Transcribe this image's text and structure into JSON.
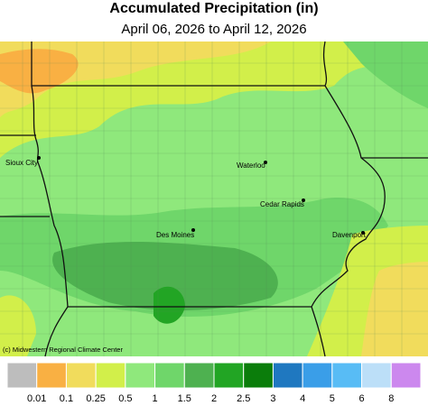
{
  "title": "Accumulated Precipitation (in)",
  "subtitle": "April 06, 2026 to April 12, 2026",
  "cities": [
    "Sioux City",
    "Waterloo",
    "Cedar Rapids",
    "Des Moines",
    "Davenport"
  ],
  "credit": "(c) Midwestern Regional Climate Center",
  "legend": {
    "labels": [
      "0.01",
      "0.1",
      "0.25",
      "0.5",
      "1",
      "1.5",
      "2",
      "2.5",
      "3",
      "4",
      "5",
      "6",
      "8"
    ],
    "colors": [
      "#bdbdbd",
      "#f9b043",
      "#f1dc5c",
      "#d2ef4a",
      "#8fe87c",
      "#6fd66a",
      "#4eb150",
      "#22a524",
      "#0b7d0b",
      "#1f78c0",
      "#3a9ee8",
      "#58bcf5",
      "#bcdff8",
      "#cc88ee"
    ]
  }
}
